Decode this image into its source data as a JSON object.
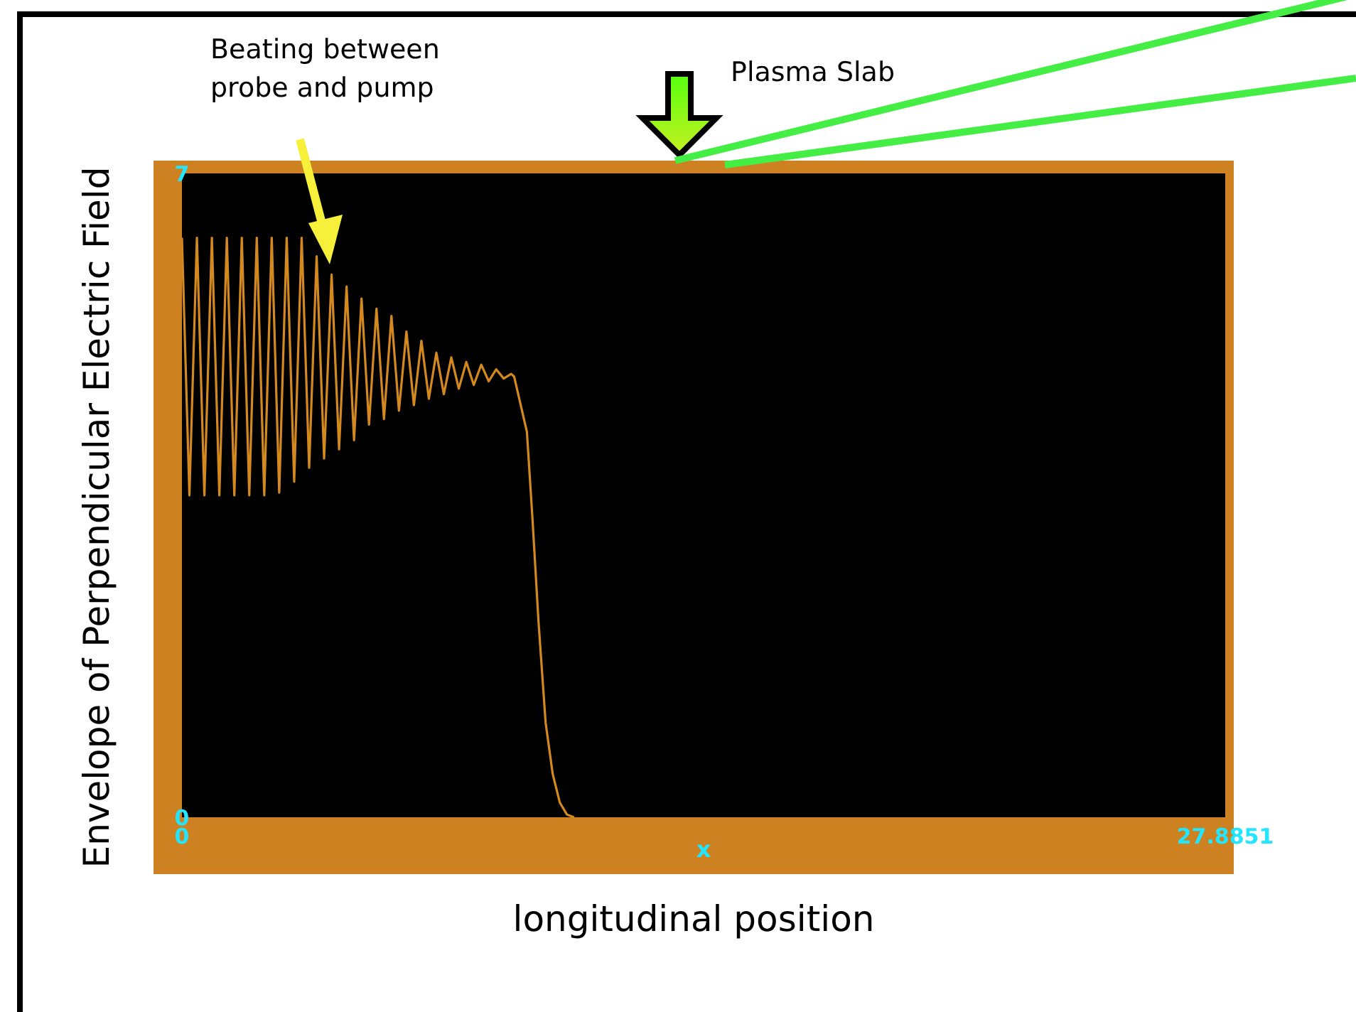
{
  "chart_data": {
    "type": "line",
    "ylabel": "Envelope of Perpendicular Electric Field",
    "xlabel": "x",
    "annotations": [
      "Beating between probe and pump",
      "Plasma Slab",
      "longitudinal position"
    ],
    "xlim": [
      0,
      27.8851
    ],
    "xticks": [
      0,
      27.8851
    ],
    "ylim": [
      0,
      7
    ],
    "yticks": [
      0,
      7
    ],
    "grid": false,
    "legend": false,
    "series": [
      {
        "color": "#d4891f",
        "x": [
          0,
          0.2,
          0.4,
          0.6,
          0.8,
          1.0,
          1.2,
          1.4,
          1.6,
          1.8,
          2.0,
          2.2,
          2.4,
          2.6,
          2.8,
          3.0,
          3.2,
          3.4,
          3.6,
          3.8,
          4.0,
          4.2,
          4.4,
          4.6,
          4.8,
          5.0,
          5.2,
          5.4,
          5.6,
          5.8,
          6.0,
          6.2,
          6.4,
          6.6,
          6.8,
          7.0,
          7.2,
          7.4,
          7.6,
          7.8,
          8.0,
          8.2,
          8.4,
          8.6,
          8.8,
          8.88,
          9.22,
          9.37,
          9.53,
          9.72,
          9.91,
          10.1,
          10.29,
          10.48
        ],
        "values": [
          6.3,
          3.5,
          6.3,
          3.5,
          6.3,
          3.5,
          6.3,
          3.5,
          6.3,
          3.5,
          6.3,
          3.5,
          6.3,
          3.53,
          6.3,
          3.65,
          6.3,
          3.8,
          6.1,
          3.9,
          5.9,
          4.0,
          5.77,
          4.1,
          5.64,
          4.27,
          5.53,
          4.33,
          5.45,
          4.42,
          5.28,
          4.48,
          5.18,
          4.55,
          5.05,
          4.6,
          5.0,
          4.66,
          4.95,
          4.7,
          4.92,
          4.74,
          4.87,
          4.77,
          4.82,
          4.79,
          4.19,
          3.24,
          2.13,
          1.03,
          0.47,
          0.16,
          0.03,
          0
        ]
      }
    ]
  }
}
